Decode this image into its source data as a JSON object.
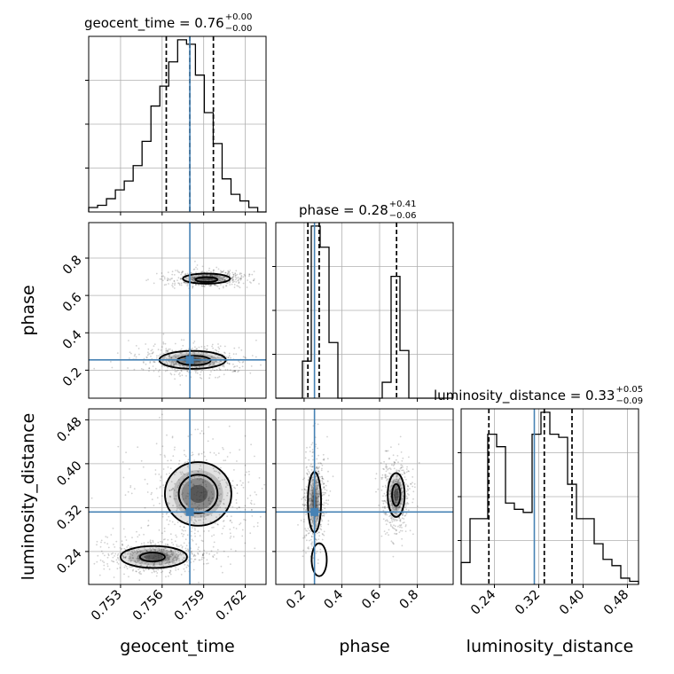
{
  "chart_data": {
    "type": "corner",
    "parameters": [
      "geocent_time",
      "phase",
      "luminosity_distance"
    ],
    "truths": {
      "geocent_time": 0.758,
      "phase": 0.255,
      "luminosity_distance": 0.312
    },
    "colors": {
      "truth": "#4682b4",
      "hist": "#000000",
      "grid": "#b0b0b0"
    },
    "titles": [
      {
        "param": "geocent_time",
        "text": "geocent_time = 0.76",
        "sup": "+0.00",
        "sub": "−0.00"
      },
      {
        "param": "phase",
        "text": "phase = 0.28",
        "sup": "+0.41",
        "sub": "−0.06"
      },
      {
        "param": "luminosity_distance",
        "text": "luminosity_distance = 0.33",
        "sup": "+0.05",
        "sub": "−0.09"
      }
    ],
    "axes": {
      "geocent_time": {
        "label": "geocent_time",
        "range": [
          0.7507,
          0.7635
        ],
        "ticks": [
          0.753,
          0.756,
          0.759,
          0.762
        ],
        "tick_labels": [
          "0.753",
          "0.756",
          "0.759",
          "0.762"
        ]
      },
      "phase": {
        "label": "phase",
        "range": [
          0.05,
          0.99
        ],
        "ticks": [
          0.2,
          0.4,
          0.6,
          0.8
        ],
        "tick_labels": [
          "0.2",
          "0.4",
          "0.6",
          "0.8"
        ]
      },
      "luminosity_distance": {
        "label": "luminosity_distance",
        "range": [
          0.18,
          0.5
        ],
        "ticks": [
          0.24,
          0.32,
          0.4,
          0.48
        ],
        "tick_labels": [
          "0.24",
          "0.32",
          "0.40",
          "0.48"
        ]
      }
    },
    "hist_1d": [
      {
        "param": "geocent_time",
        "quantiles": [
          0.7563,
          0.758,
          0.7597
        ],
        "bin_edges": [
          0.7507,
          0.751342,
          0.751984,
          0.752626,
          0.753268,
          0.75391,
          0.754552,
          0.755194,
          0.755836,
          0.756478,
          0.75712,
          0.757762,
          0.758404,
          0.759046,
          0.759688,
          0.76033,
          0.760972,
          0.761614,
          0.762256,
          0.762898,
          0.76354
        ],
        "counts": [
          2,
          3,
          6,
          10,
          14,
          21,
          32,
          48,
          57,
          68,
          78,
          76,
          62,
          45,
          31,
          15,
          8,
          5,
          2,
          0
        ]
      },
      {
        "param": "phase",
        "quantiles": [
          0.22,
          0.28,
          0.69
        ],
        "bin_edges": [
          0.05,
          0.097,
          0.144,
          0.191,
          0.238,
          0.285,
          0.332,
          0.379,
          0.426,
          0.473,
          0.52,
          0.567,
          0.614,
          0.661,
          0.708,
          0.755,
          0.802,
          0.849,
          0.896,
          0.943,
          0.99
        ],
        "counts": [
          0,
          0,
          0,
          14,
          65,
          57,
          21,
          0,
          0,
          0,
          0,
          0,
          6,
          46,
          18,
          0,
          0,
          0,
          0,
          0
        ]
      },
      {
        "param": "luminosity_distance",
        "quantiles": [
          0.23,
          0.33,
          0.38
        ],
        "bin_edges": [
          0.18,
          0.196,
          0.212,
          0.228,
          0.244,
          0.26,
          0.276,
          0.292,
          0.308,
          0.324,
          0.34,
          0.356,
          0.372,
          0.388,
          0.404,
          0.42,
          0.436,
          0.452,
          0.468,
          0.484,
          0.5
        ],
        "counts": [
          7,
          21,
          21,
          48,
          44,
          26,
          24,
          23,
          48,
          55,
          48,
          47,
          32,
          21,
          21,
          13,
          8,
          6,
          2,
          1
        ]
      }
    ],
    "contours_2d": [
      {
        "x": "geocent_time",
        "y": "phase",
        "levels": [
          {
            "cx": 0.7582,
            "cy": 0.255,
            "rx": 0.0024,
            "ry": 0.048
          },
          {
            "cx": 0.7583,
            "cy": 0.252,
            "rx": 0.0012,
            "ry": 0.025
          },
          {
            "cx": 0.7592,
            "cy": 0.69,
            "rx": 0.0017,
            "ry": 0.027
          },
          {
            "cx": 0.7592,
            "cy": 0.685,
            "rx": 0.0008,
            "ry": 0.013
          }
        ]
      },
      {
        "x": "geocent_time",
        "y": "luminosity_distance",
        "levels": [
          {
            "cx": 0.7586,
            "cy": 0.345,
            "rx": 0.0024,
            "ry": 0.058
          },
          {
            "cx": 0.7586,
            "cy": 0.345,
            "rx": 0.0014,
            "ry": 0.035
          },
          {
            "cx": 0.7554,
            "cy": 0.23,
            "rx": 0.0024,
            "ry": 0.02
          },
          {
            "cx": 0.7553,
            "cy": 0.23,
            "rx": 0.0009,
            "ry": 0.008
          }
        ]
      },
      {
        "x": "phase",
        "y": "luminosity_distance",
        "levels": [
          {
            "cx": 0.255,
            "cy": 0.33,
            "rx": 0.035,
            "ry": 0.055
          },
          {
            "cx": 0.28,
            "cy": 0.225,
            "rx": 0.04,
            "ry": 0.03
          },
          {
            "cx": 0.688,
            "cy": 0.343,
            "rx": 0.045,
            "ry": 0.04
          },
          {
            "cx": 0.688,
            "cy": 0.343,
            "rx": 0.022,
            "ry": 0.02
          }
        ]
      }
    ],
    "grid": true
  }
}
